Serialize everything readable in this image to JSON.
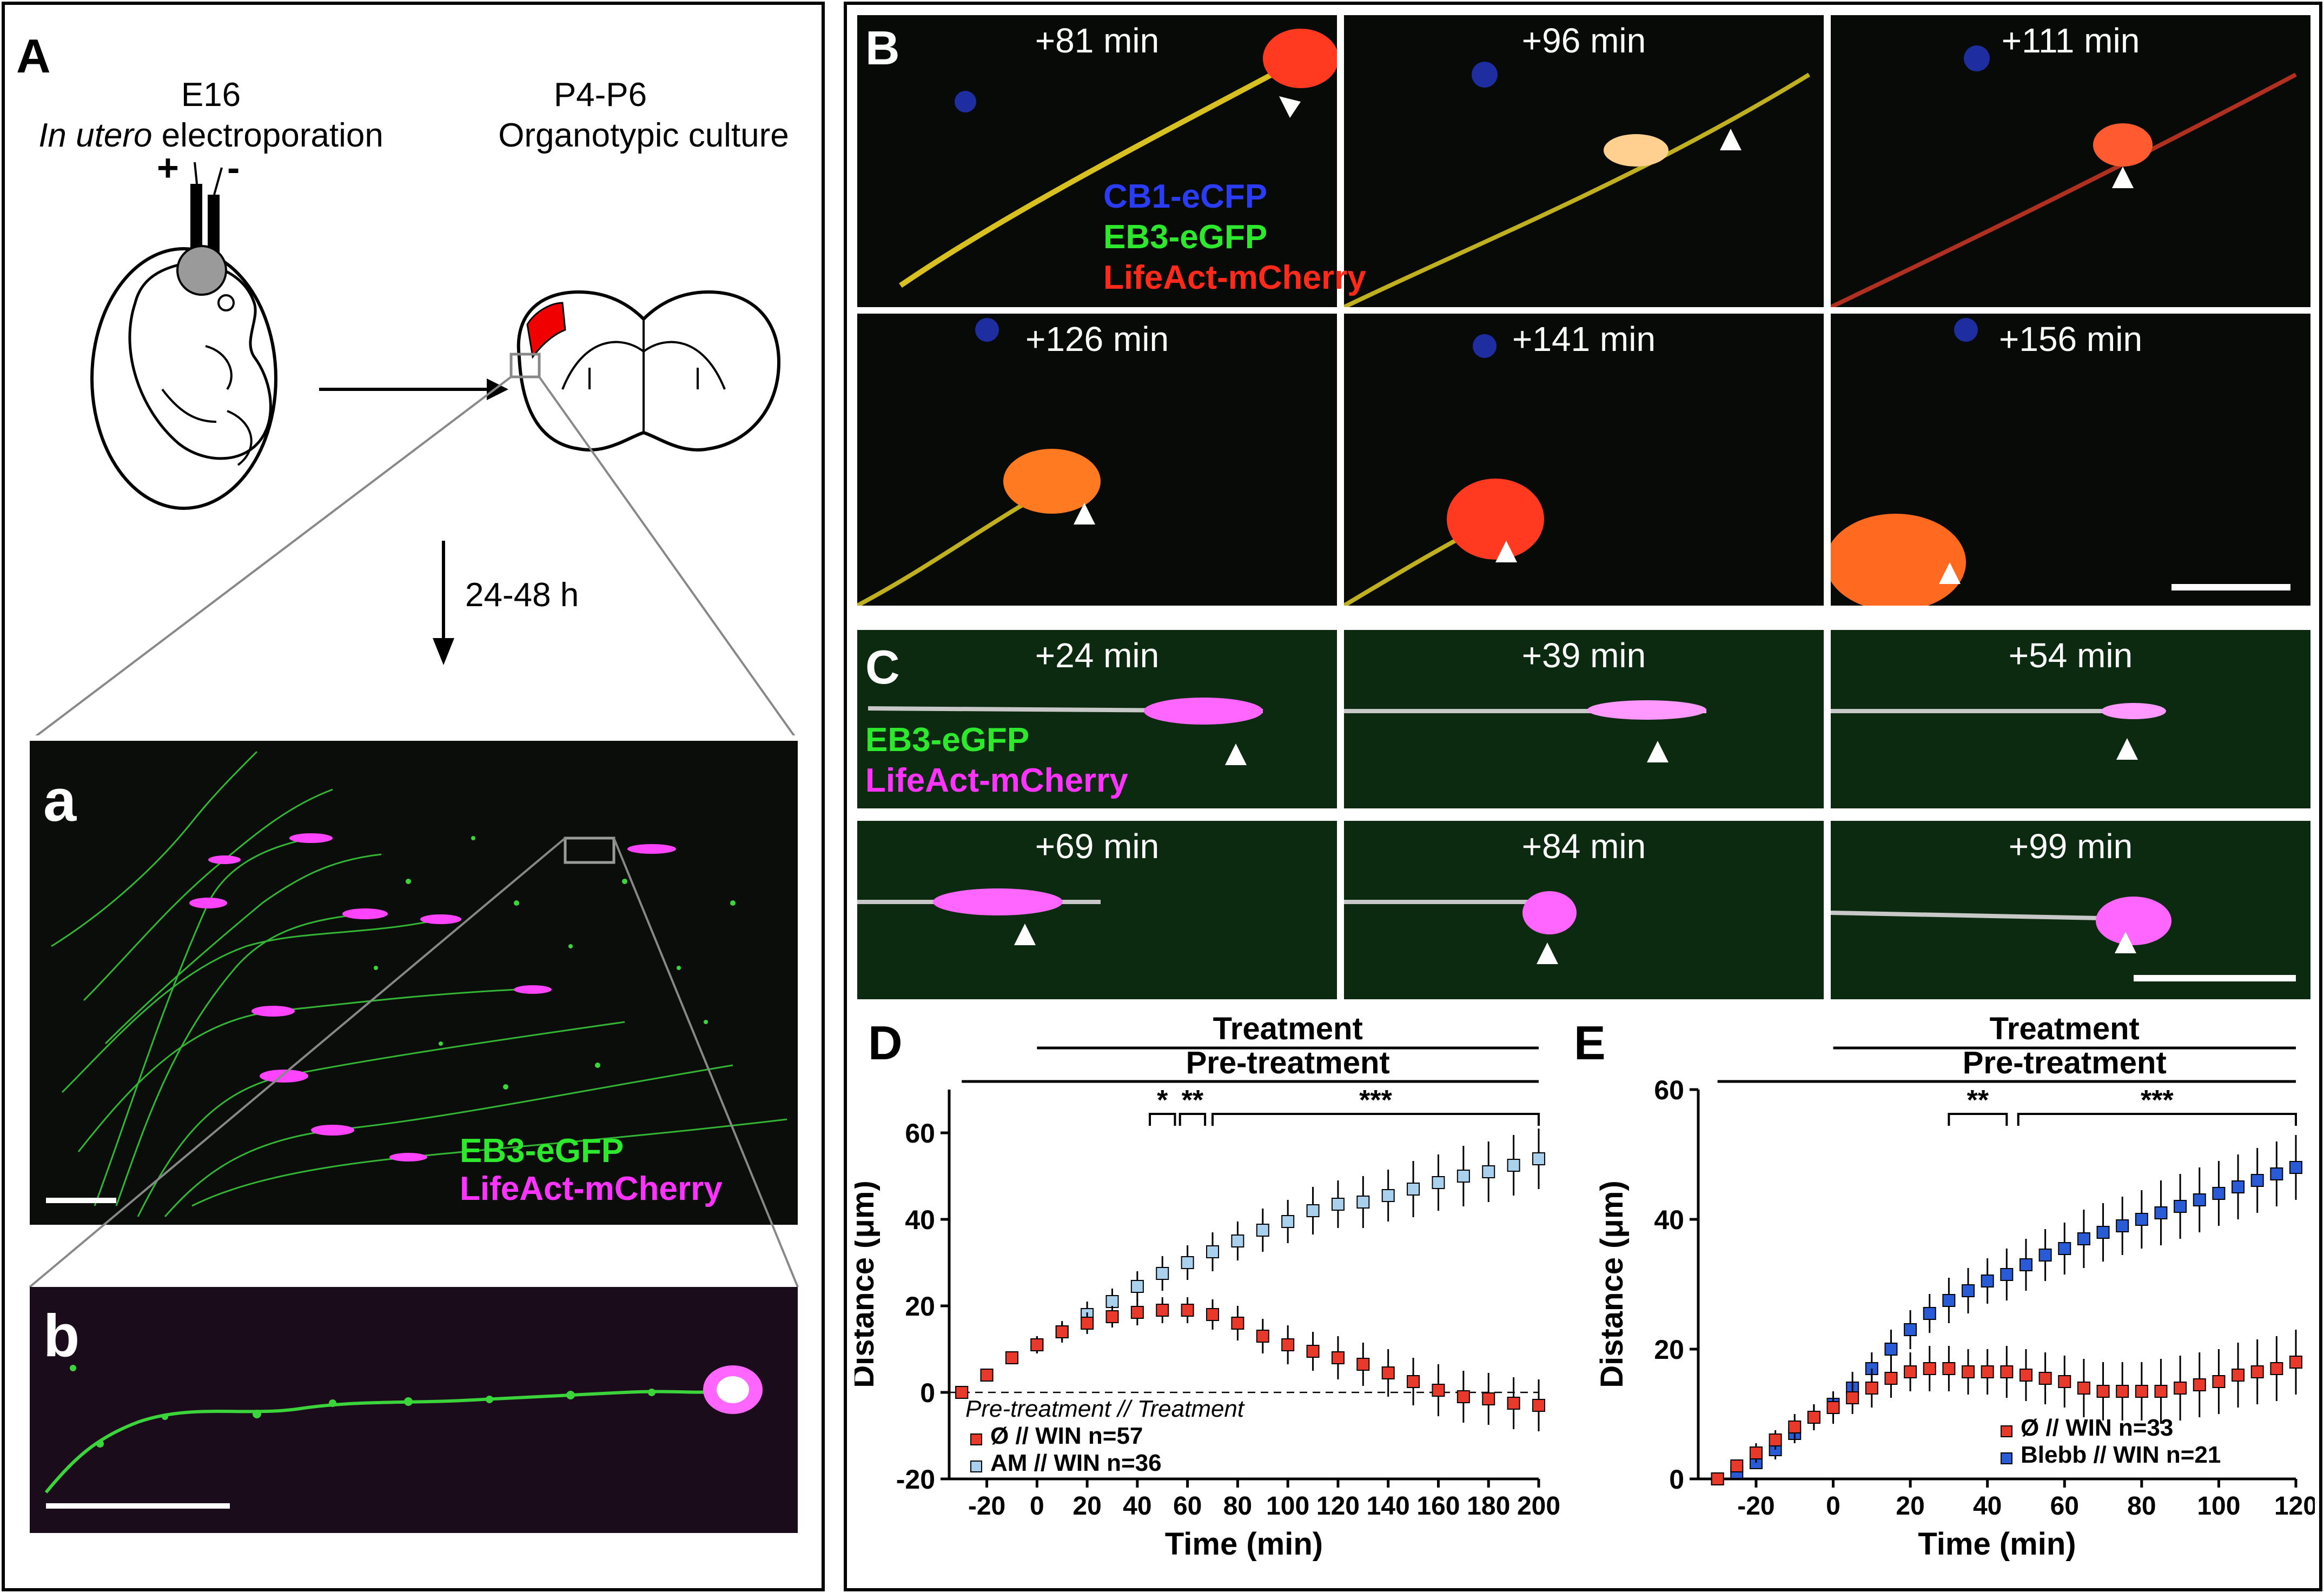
{
  "panel_a": {
    "letter": "A",
    "step1_line1": "E16",
    "step1_line2_italic": "In utero",
    "step1_line2_rest": " electroporation",
    "step2_line1": "P4-P6",
    "step2_line2": "Organotypic culture",
    "plus": "+",
    "minus": "-",
    "duration": "24-48 h",
    "sub_a": "a",
    "sub_b": "b",
    "legend_green": "EB3-eGFP",
    "legend_magenta": "LifeAct-mCherry"
  },
  "panel_b": {
    "letter": "B",
    "times": [
      "+81 min",
      "+96 min",
      "+111 min",
      "+126 min",
      "+141 min",
      "+156 min"
    ],
    "legend": [
      "CB1-eCFP",
      "EB3-eGFP",
      "LifeAct-mCherry"
    ]
  },
  "panel_c": {
    "letter": "C",
    "times": [
      "+24 min",
      "+39 min",
      "+54 min",
      "+69 min",
      "+84 min",
      "+99 min"
    ],
    "legend": [
      "EB3-eGFP",
      "LifeAct-mCherry"
    ]
  },
  "colors": {
    "red_series": "#e8392a",
    "lightblue_series": "#a9d0ec",
    "blue_series": "#2a5bd7",
    "green_label": "#2ee82e",
    "magenta_label": "#ff33ff",
    "blue_label": "#2a3cf5",
    "red_label": "#ff2a1a"
  },
  "chart_data": [
    {
      "panel": "D",
      "type": "line",
      "treatment_label": "Treatment",
      "pretreatment_label": "Pre-treatment",
      "xlabel": "Time (min)",
      "ylabel": "Distance (μm)",
      "xlim": [
        -35,
        200
      ],
      "ylim": [
        -20,
        70
      ],
      "xticks": [
        -20,
        0,
        20,
        40,
        60,
        80,
        100,
        120,
        140,
        160,
        180,
        200
      ],
      "yticks": [
        -20,
        0,
        20,
        40,
        60
      ],
      "significance": [
        {
          "from": 45,
          "to": 55,
          "label": "*"
        },
        {
          "from": 57,
          "to": 67,
          "label": "**"
        },
        {
          "from": 70,
          "to": 200,
          "label": "***"
        }
      ],
      "legend_title": "Pre-treatment // Treatment",
      "series": [
        {
          "name": "Ø // WIN n=57",
          "color": "#e8392a",
          "x": [
            -30,
            -20,
            -10,
            0,
            10,
            20,
            30,
            40,
            50,
            60,
            70,
            80,
            90,
            100,
            110,
            120,
            130,
            140,
            150,
            160,
            170,
            180,
            190,
            200
          ],
          "y": [
            0,
            4,
            8,
            11,
            14,
            16,
            17.5,
            18.5,
            19,
            19,
            18,
            16,
            13,
            11,
            9.5,
            8,
            6.5,
            4.5,
            2.5,
            0.5,
            -1,
            -1.5,
            -2.5,
            -3
          ],
          "err": [
            0.5,
            1,
            1.5,
            2,
            2,
            2.5,
            2.5,
            3,
            3,
            3,
            3.5,
            4,
            4,
            4.5,
            4.5,
            5,
            5,
            5.5,
            5.5,
            6,
            6,
            6,
            6,
            6
          ]
        },
        {
          "name": "AM // WIN n=36",
          "color": "#a9d0ec",
          "x": [
            -30,
            -20,
            -10,
            0,
            10,
            20,
            30,
            40,
            50,
            60,
            70,
            80,
            90,
            100,
            110,
            120,
            130,
            140,
            150,
            160,
            170,
            180,
            190,
            200
          ],
          "y": [
            0,
            4,
            8,
            11,
            14,
            18,
            21,
            24.5,
            27.5,
            30,
            32.5,
            35,
            37.5,
            39.5,
            42,
            43.5,
            44,
            45.5,
            47,
            48.5,
            50,
            51,
            52.5,
            54
          ],
          "err": [
            0.5,
            1,
            1.5,
            2,
            2.5,
            3,
            3,
            3.5,
            4,
            4,
            4.5,
            4.5,
            5,
            5,
            5.5,
            5.5,
            6,
            6,
            6.5,
            6.5,
            7,
            7,
            7,
            7
          ]
        }
      ]
    },
    {
      "panel": "E",
      "type": "line",
      "treatment_label": "Treatment",
      "pretreatment_label": "Pre-treatment",
      "xlabel": "Time (min)",
      "ylabel": "Distance (μm)",
      "xlim": [
        -35,
        120
      ],
      "ylim": [
        0,
        60
      ],
      "xticks": [
        -20,
        0,
        20,
        40,
        60,
        80,
        100,
        120
      ],
      "yticks": [
        0,
        20,
        40,
        60
      ],
      "significance": [
        {
          "from": 30,
          "to": 45,
          "label": "**"
        },
        {
          "from": 48,
          "to": 120,
          "label": "***"
        }
      ],
      "series": [
        {
          "name": "Ø // WIN n=33",
          "color": "#e8392a",
          "x": [
            -30,
            -25,
            -20,
            -15,
            -10,
            -5,
            0,
            5,
            10,
            15,
            20,
            25,
            30,
            35,
            40,
            45,
            50,
            55,
            60,
            65,
            70,
            75,
            80,
            85,
            90,
            95,
            100,
            105,
            110,
            115,
            120
          ],
          "y": [
            0,
            2,
            4,
            6,
            8,
            9.5,
            11,
            12.5,
            14,
            15.5,
            16.5,
            17,
            17,
            16.5,
            16.5,
            16.5,
            16,
            15.5,
            15,
            14,
            13.5,
            13.5,
            13.5,
            13.5,
            14,
            14.5,
            15,
            16,
            16.5,
            17,
            18
          ],
          "err": [
            0.5,
            1,
            1.5,
            1.5,
            2,
            2,
            2.5,
            2.5,
            3,
            3,
            3,
            3.5,
            3.5,
            3.5,
            3.5,
            4,
            4,
            4,
            4,
            4.5,
            4.5,
            4.5,
            4.5,
            5,
            5,
            5,
            5,
            5,
            5,
            5,
            5
          ]
        },
        {
          "name": "Blebb // WIN n=21",
          "color": "#2a5bd7",
          "x": [
            -30,
            -25,
            -20,
            -15,
            -10,
            -5,
            0,
            5,
            10,
            15,
            20,
            25,
            30,
            35,
            40,
            45,
            50,
            55,
            60,
            65,
            70,
            75,
            80,
            85,
            90,
            95,
            100,
            105,
            110,
            115,
            120
          ],
          "y": [
            0,
            1,
            2.5,
            4.5,
            7,
            9.5,
            11.5,
            14,
            17,
            20,
            23,
            25.5,
            27.5,
            29,
            30.5,
            31.5,
            33,
            34.5,
            35.5,
            37,
            38,
            39,
            40,
            41,
            42,
            43,
            44,
            45,
            46,
            47,
            48
          ],
          "err": [
            0.5,
            1,
            1,
            1.5,
            1.5,
            2,
            2,
            2.5,
            2.5,
            3,
            3,
            3,
            3.5,
            3.5,
            3.5,
            4,
            4,
            4,
            4,
            4.5,
            4.5,
            4.5,
            4.5,
            5,
            5,
            5,
            5,
            5,
            5,
            5,
            5
          ]
        }
      ]
    }
  ]
}
